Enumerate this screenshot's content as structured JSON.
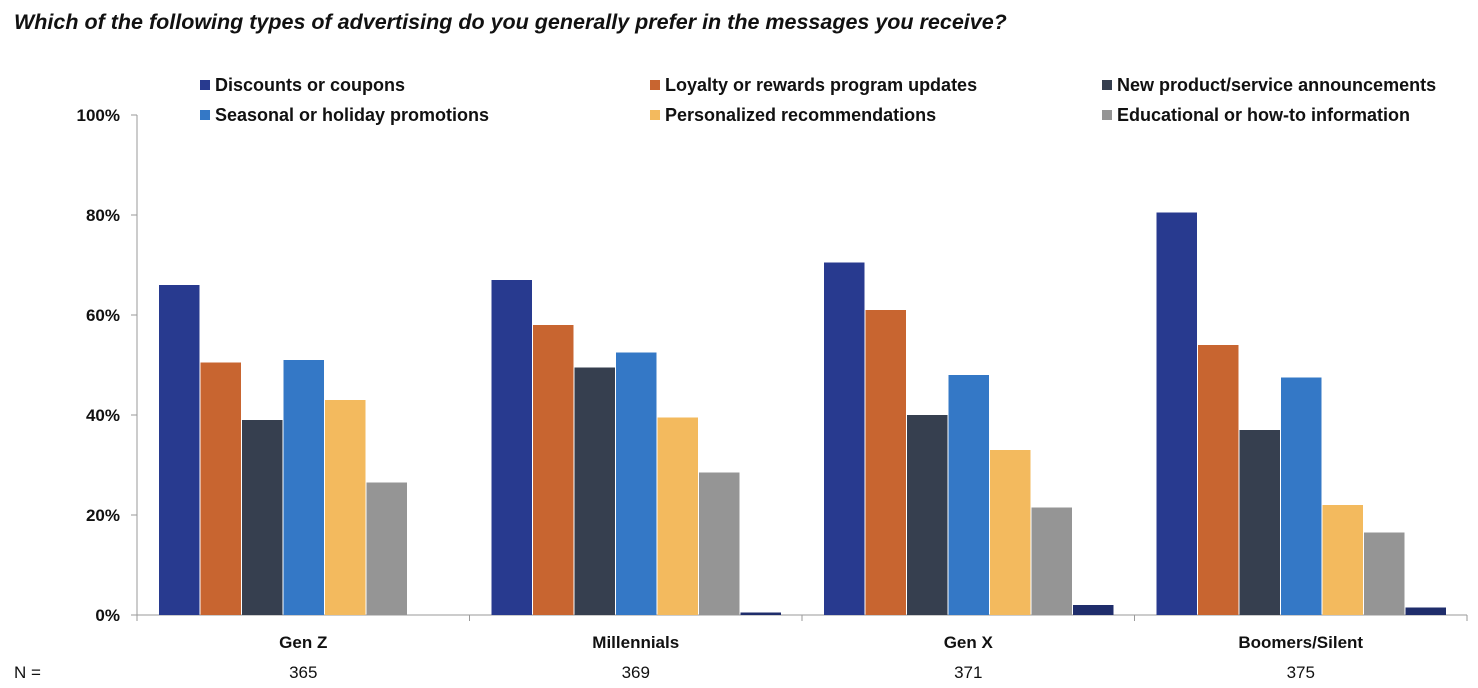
{
  "chart_data": {
    "type": "bar",
    "title": "Which of the following types of advertising do you generally prefer in the messages you receive?",
    "categories": [
      "Gen Z",
      "Millennials",
      "Gen X",
      "Boomers/Silent"
    ],
    "series": [
      {
        "name": "Discounts or coupons",
        "color": "#283a8f",
        "values": [
          66,
          67,
          70.5,
          80.5
        ]
      },
      {
        "name": "Loyalty or rewards program updates",
        "color": "#c86530",
        "values": [
          50.5,
          58,
          61,
          54
        ]
      },
      {
        "name": "New product/service announcements",
        "color": "#363f4f",
        "values": [
          39,
          49.5,
          40,
          37
        ]
      },
      {
        "name": "Seasonal or holiday promotions",
        "color": "#3478c6",
        "values": [
          51,
          52.5,
          48,
          47.5
        ]
      },
      {
        "name": "Personalized recommendations",
        "color": "#f3ba5e",
        "values": [
          43,
          39.5,
          33,
          22
        ]
      },
      {
        "name": "Educational or how-to information",
        "color": "#959595",
        "values": [
          26.5,
          28.5,
          21.5,
          16.5
        ]
      },
      {
        "color": "#1f2d6b",
        "values": [
          0,
          0.5,
          2,
          1.5
        ]
      }
    ],
    "yticks": [
      "0%",
      "20%",
      "40%",
      "60%",
      "80%",
      "100%"
    ],
    "ylim": [
      0,
      100
    ],
    "legend_position": "top",
    "grid": false,
    "n_label": "N =",
    "n_values": [
      "365",
      "369",
      "371",
      "375"
    ]
  }
}
